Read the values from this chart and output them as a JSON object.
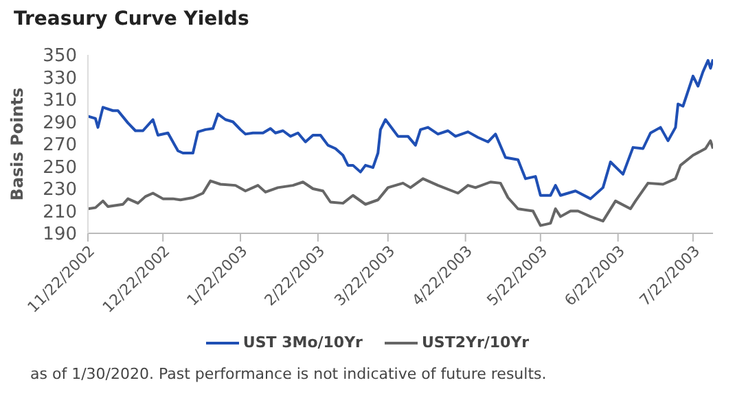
{
  "chart_data": {
    "type": "line",
    "title": "Treasury Curve Yields",
    "ylabel": "Basis Points",
    "annotations": [
      "as of 1/30/2020. Past performance is not indicative of future results."
    ],
    "xlim": [
      "2002-11-22",
      "2003-07-30"
    ],
    "xticks": [
      {
        "value": "2002-11-22",
        "label": "11/22/2002"
      },
      {
        "value": "2002-12-22",
        "label": "12/22/2002"
      },
      {
        "value": "2003-01-22",
        "label": "1/22/2003"
      },
      {
        "value": "2003-02-22",
        "label": "2/22/2003"
      },
      {
        "value": "2003-03-22",
        "label": "3/22/2003"
      },
      {
        "value": "2003-04-22",
        "label": "4/22/2003"
      },
      {
        "value": "2003-05-22",
        "label": "5/22/2003"
      },
      {
        "value": "2003-06-22",
        "label": "6/22/2003"
      },
      {
        "value": "2003-07-22",
        "label": "7/22/2003"
      }
    ],
    "ylim": [
      190,
      350
    ],
    "yticks": [
      190,
      210,
      230,
      250,
      270,
      290,
      310,
      330,
      350
    ],
    "grid": false,
    "legend": "bottom",
    "marker": "none",
    "line_style": "solid",
    "series": [
      {
        "name": "UST 3Mo/10Yr",
        "color": "#1f4fb4",
        "x": [
          "2002-11-22",
          "2002-11-25",
          "2002-11-26",
          "2002-11-28",
          "2002-12-02",
          "2002-12-04",
          "2002-12-08",
          "2002-12-11",
          "2002-12-14",
          "2002-12-18",
          "2002-12-20",
          "2002-12-24",
          "2002-12-28",
          "2002-12-30",
          "2003-01-03",
          "2003-01-05",
          "2003-01-08",
          "2003-01-11",
          "2003-01-13",
          "2003-01-16",
          "2003-01-19",
          "2003-01-22",
          "2003-01-24",
          "2003-01-27",
          "2003-01-31",
          "2003-02-03",
          "2003-02-05",
          "2003-02-08",
          "2003-02-11",
          "2003-02-14",
          "2003-02-17",
          "2003-02-20",
          "2003-02-23",
          "2003-02-26",
          "2003-03-01",
          "2003-03-04",
          "2003-03-06",
          "2003-03-08",
          "2003-03-11",
          "2003-03-13",
          "2003-03-16",
          "2003-03-18",
          "2003-03-19",
          "2003-03-21",
          "2003-03-26",
          "2003-03-30",
          "2003-04-02",
          "2003-04-04",
          "2003-04-07",
          "2003-04-11",
          "2003-04-15",
          "2003-04-18",
          "2003-04-23",
          "2003-04-27",
          "2003-05-01",
          "2003-05-04",
          "2003-05-08",
          "2003-05-13",
          "2003-05-16",
          "2003-05-20",
          "2003-05-22",
          "2003-05-26",
          "2003-05-28",
          "2003-05-30",
          "2003-06-05",
          "2003-06-11",
          "2003-06-16",
          "2003-06-19",
          "2003-06-24",
          "2003-06-28",
          "2003-07-02",
          "2003-07-05",
          "2003-07-09",
          "2003-07-12",
          "2003-07-15",
          "2003-07-16",
          "2003-07-18",
          "2003-07-22",
          "2003-07-24",
          "2003-07-26",
          "2003-07-28",
          "2003-07-29",
          "2003-07-30"
        ],
        "values": [
          295,
          293,
          285,
          303,
          300,
          300,
          289,
          282,
          282,
          292,
          278,
          280,
          264,
          262,
          262,
          281,
          283,
          284,
          297,
          292,
          290,
          283,
          279,
          280,
          280,
          284,
          280,
          282,
          277,
          280,
          272,
          278,
          278,
          269,
          266,
          260,
          251,
          251,
          245,
          251,
          249,
          262,
          283,
          292,
          277,
          277,
          269,
          283,
          285,
          279,
          282,
          277,
          281,
          276,
          272,
          279,
          258,
          256,
          239,
          241,
          224,
          224,
          233,
          224,
          228,
          221,
          231,
          254,
          243,
          267,
          266,
          280,
          285,
          273,
          285,
          306,
          304,
          331,
          322,
          335,
          345,
          338,
          346
        ]
      },
      {
        "name": "UST2Yr/10Yr",
        "color": "#666666",
        "x": [
          "2002-11-22",
          "2002-11-25",
          "2002-11-28",
          "2002-11-30",
          "2002-12-06",
          "2002-12-08",
          "2002-12-12",
          "2002-12-15",
          "2002-12-18",
          "2002-12-22",
          "2002-12-26",
          "2002-12-29",
          "2003-01-03",
          "2003-01-07",
          "2003-01-10",
          "2003-01-14",
          "2003-01-20",
          "2003-01-24",
          "2003-01-29",
          "2003-02-01",
          "2003-02-06",
          "2003-02-12",
          "2003-02-16",
          "2003-02-20",
          "2003-02-24",
          "2003-02-27",
          "2003-03-04",
          "2003-03-08",
          "2003-03-13",
          "2003-03-18",
          "2003-03-22",
          "2003-03-28",
          "2003-03-31",
          "2003-04-05",
          "2003-04-11",
          "2003-04-19",
          "2003-04-23",
          "2003-04-26",
          "2003-05-02",
          "2003-05-06",
          "2003-05-09",
          "2003-05-13",
          "2003-05-19",
          "2003-05-22",
          "2003-05-26",
          "2003-05-28",
          "2003-05-30",
          "2003-06-03",
          "2003-06-06",
          "2003-06-11",
          "2003-06-16",
          "2003-06-21",
          "2003-06-27",
          "2003-06-29",
          "2003-07-04",
          "2003-07-10",
          "2003-07-15",
          "2003-07-17",
          "2003-07-22",
          "2003-07-27",
          "2003-07-29",
          "2003-07-30"
        ],
        "values": [
          212,
          213,
          219,
          214,
          216,
          221,
          217,
          223,
          226,
          221,
          221,
          220,
          222,
          226,
          237,
          234,
          233,
          228,
          233,
          227,
          231,
          233,
          236,
          230,
          228,
          218,
          217,
          224,
          216,
          220,
          231,
          235,
          231,
          239,
          233,
          226,
          233,
          231,
          236,
          235,
          222,
          212,
          210,
          197,
          199,
          212,
          205,
          210,
          210,
          205,
          201,
          219,
          212,
          219,
          235,
          234,
          239,
          251,
          260,
          266,
          273,
          266
        ]
      }
    ]
  }
}
